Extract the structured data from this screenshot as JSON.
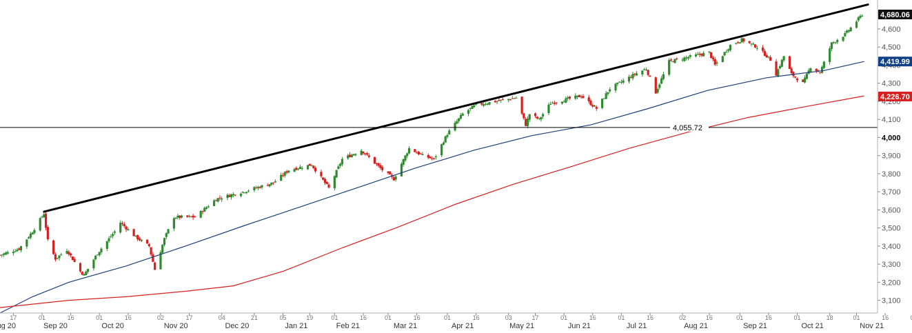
{
  "chart_data": {
    "type": "candlestick",
    "title": "",
    "xlabel": "",
    "ylabel": "",
    "ylim": [
      3030,
      4760
    ],
    "y_ticks": [
      3100,
      3200,
      3300,
      3400,
      3500,
      3600,
      3700,
      3800,
      3900,
      4000,
      4100,
      4200,
      4300,
      4400,
      4500,
      4600
    ],
    "y_tick_labels": [
      "3,100",
      "3,200",
      "3,300",
      "3,400",
      "3,500",
      "3,600",
      "3,700",
      "3,800",
      "3,900",
      "4,000",
      "4,100",
      "4,200",
      "4,300",
      "4,400",
      "4,500",
      "4,600"
    ],
    "x_start": "2020-08-10",
    "x_end": "2021-11-12",
    "x_ticks": [
      {
        "date": "2020-08-17",
        "label": "17"
      },
      {
        "date": "2020-09-01",
        "label": "01"
      },
      {
        "date": "2020-09-16",
        "label": "16"
      },
      {
        "date": "2020-10-01",
        "label": "01"
      },
      {
        "date": "2020-10-16",
        "label": "16"
      },
      {
        "date": "2020-11-02",
        "label": "02"
      },
      {
        "date": "2020-11-17",
        "label": "17"
      },
      {
        "date": "2020-12-04",
        "label": "04"
      },
      {
        "date": "2020-12-21",
        "label": "21"
      },
      {
        "date": "2021-01-05",
        "label": "05"
      },
      {
        "date": "2021-01-19",
        "label": "19"
      },
      {
        "date": "2021-02-01",
        "label": "01"
      },
      {
        "date": "2021-02-16",
        "label": "16"
      },
      {
        "date": "2021-03-01",
        "label": "01"
      },
      {
        "date": "2021-03-16",
        "label": "16"
      },
      {
        "date": "2021-04-01",
        "label": "01"
      },
      {
        "date": "2021-04-16",
        "label": "16"
      },
      {
        "date": "2021-05-03",
        "label": "03"
      },
      {
        "date": "2021-05-17",
        "label": "17"
      },
      {
        "date": "2021-06-01",
        "label": "01"
      },
      {
        "date": "2021-06-16",
        "label": "16"
      },
      {
        "date": "2021-07-01",
        "label": "01"
      },
      {
        "date": "2021-07-16",
        "label": "16"
      },
      {
        "date": "2021-08-02",
        "label": "02"
      },
      {
        "date": "2021-08-16",
        "label": "16"
      },
      {
        "date": "2021-09-01",
        "label": "01"
      },
      {
        "date": "2021-09-16",
        "label": "16"
      },
      {
        "date": "2021-10-01",
        "label": "01"
      },
      {
        "date": "2021-10-18",
        "label": "18"
      },
      {
        "date": "2021-11-01",
        "label": "01"
      },
      {
        "date": "2021-11-16",
        "label": "16"
      },
      {
        "date": "2021-12-01",
        "label": "01"
      }
    ],
    "month_labels": [
      {
        "date": "2020-08-12",
        "label": "Aug 20"
      },
      {
        "date": "2020-09-08",
        "label": "Sep 20"
      },
      {
        "date": "2020-10-08",
        "label": "Oct 20"
      },
      {
        "date": "2020-11-10",
        "label": "Nov 20"
      },
      {
        "date": "2020-12-12",
        "label": "Dec 20"
      },
      {
        "date": "2021-01-12",
        "label": "Jan 21"
      },
      {
        "date": "2021-02-08",
        "label": "Feb 21"
      },
      {
        "date": "2021-03-10",
        "label": "Mar 21"
      },
      {
        "date": "2021-04-09",
        "label": "Apr 21"
      },
      {
        "date": "2021-05-10",
        "label": "May 21"
      },
      {
        "date": "2021-06-09",
        "label": "Jun 21"
      },
      {
        "date": "2021-07-09",
        "label": "Jul 21"
      },
      {
        "date": "2021-08-09",
        "label": "Aug 21"
      },
      {
        "date": "2021-09-09",
        "label": "Sep 21"
      },
      {
        "date": "2021-10-09",
        "label": "Oct 21"
      },
      {
        "date": "2021-11-09",
        "label": "Nov 21"
      }
    ],
    "price_path": [
      [
        "2020-08-10",
        3350
      ],
      [
        "2020-08-20",
        3385
      ],
      [
        "2020-08-27",
        3480
      ],
      [
        "2020-09-02",
        3580
      ],
      [
        "2020-09-04",
        3430
      ],
      [
        "2020-09-08",
        3330
      ],
      [
        "2020-09-14",
        3380
      ],
      [
        "2020-09-21",
        3260
      ],
      [
        "2020-09-23",
        3240
      ],
      [
        "2020-09-30",
        3360
      ],
      [
        "2020-10-09",
        3480
      ],
      [
        "2020-10-12",
        3530
      ],
      [
        "2020-10-20",
        3450
      ],
      [
        "2020-10-27",
        3400
      ],
      [
        "2020-10-30",
        3270
      ],
      [
        "2020-11-04",
        3440
      ],
      [
        "2020-11-09",
        3560
      ],
      [
        "2020-11-20",
        3560
      ],
      [
        "2020-12-01",
        3660
      ],
      [
        "2020-12-15",
        3700
      ],
      [
        "2020-12-31",
        3750
      ],
      [
        "2021-01-08",
        3820
      ],
      [
        "2021-01-20",
        3850
      ],
      [
        "2021-01-29",
        3720
      ],
      [
        "2021-02-05",
        3880
      ],
      [
        "2021-02-15",
        3930
      ],
      [
        "2021-02-25",
        3830
      ],
      [
        "2021-03-04",
        3770
      ],
      [
        "2021-03-12",
        3940
      ],
      [
        "2021-03-19",
        3900
      ],
      [
        "2021-03-25",
        3880
      ],
      [
        "2021-04-01",
        4020
      ],
      [
        "2021-04-09",
        4130
      ],
      [
        "2021-04-16",
        4180
      ],
      [
        "2021-05-07",
        4220
      ],
      [
        "2021-05-12",
        4070
      ],
      [
        "2021-05-14",
        4130
      ],
      [
        "2021-05-19",
        4100
      ],
      [
        "2021-05-25",
        4190
      ],
      [
        "2021-06-10",
        4230
      ],
      [
        "2021-06-18",
        4160
      ],
      [
        "2021-06-25",
        4270
      ],
      [
        "2021-07-08",
        4350
      ],
      [
        "2021-07-14",
        4380
      ],
      [
        "2021-07-19",
        4250
      ],
      [
        "2021-07-26",
        4420
      ],
      [
        "2021-08-16",
        4470
      ],
      [
        "2021-08-19",
        4400
      ],
      [
        "2021-08-27",
        4510
      ],
      [
        "2021-09-02",
        4540
      ],
      [
        "2021-09-10",
        4500
      ],
      [
        "2021-09-17",
        4430
      ],
      [
        "2021-09-20",
        4350
      ],
      [
        "2021-09-24",
        4450
      ],
      [
        "2021-09-28",
        4350
      ],
      [
        "2021-10-04",
        4300
      ],
      [
        "2021-10-08",
        4390
      ],
      [
        "2021-10-13",
        4360
      ],
      [
        "2021-10-19",
        4520
      ],
      [
        "2021-10-26",
        4570
      ],
      [
        "2021-11-04",
        4680
      ]
    ],
    "series": [
      {
        "name": "",
        "kind": "line",
        "color": "#1c3f7a",
        "points": [
          [
            "2020-08-10",
            3030
          ],
          [
            "2020-08-27",
            3120
          ],
          [
            "2020-09-15",
            3200
          ],
          [
            "2020-10-15",
            3290
          ],
          [
            "2020-11-15",
            3400
          ],
          [
            "2020-12-15",
            3510
          ],
          [
            "2021-01-15",
            3620
          ],
          [
            "2021-02-15",
            3730
          ],
          [
            "2021-03-15",
            3830
          ],
          [
            "2021-04-15",
            3930
          ],
          [
            "2021-05-15",
            4010
          ],
          [
            "2021-06-15",
            4070
          ],
          [
            "2021-07-15",
            4160
          ],
          [
            "2021-08-15",
            4260
          ],
          [
            "2021-09-15",
            4330
          ],
          [
            "2021-10-15",
            4370
          ],
          [
            "2021-11-05",
            4420
          ]
        ]
      },
      {
        "name": "",
        "kind": "line",
        "color": "#d61f1f",
        "points": [
          [
            "2020-08-10",
            3060
          ],
          [
            "2020-09-15",
            3100
          ],
          [
            "2020-10-15",
            3120
          ],
          [
            "2020-11-15",
            3150
          ],
          [
            "2020-12-10",
            3180
          ],
          [
            "2021-01-05",
            3260
          ],
          [
            "2021-02-05",
            3390
          ],
          [
            "2021-03-05",
            3500
          ],
          [
            "2021-04-05",
            3630
          ],
          [
            "2021-05-05",
            3740
          ],
          [
            "2021-06-05",
            3840
          ],
          [
            "2021-07-05",
            3940
          ],
          [
            "2021-08-05",
            4030
          ],
          [
            "2021-09-05",
            4110
          ],
          [
            "2021-10-05",
            4170
          ],
          [
            "2021-11-05",
            4230
          ]
        ]
      }
    ],
    "trendline": {
      "color": "#000000",
      "points": [
        [
          "2020-09-02",
          3590
        ],
        [
          "2021-11-07",
          4735
        ]
      ]
    },
    "hline": {
      "value": 4055.72,
      "label": "4,055.72"
    },
    "price_labels": [
      {
        "value": 4680.06,
        "label": "4,680.06",
        "bg": "#111111",
        "fg": "#ffffff"
      },
      {
        "value": 4419.99,
        "label": "4,419.99",
        "bg": "#0f3f86",
        "fg": "#ffffff"
      },
      {
        "value": 4226.7,
        "label": "4,226.70",
        "bg": "#d61f1f",
        "fg": "#ffffff"
      }
    ],
    "candle_colors": {
      "up": "#2e8b2e",
      "down": "#d52020"
    },
    "grid": false
  }
}
